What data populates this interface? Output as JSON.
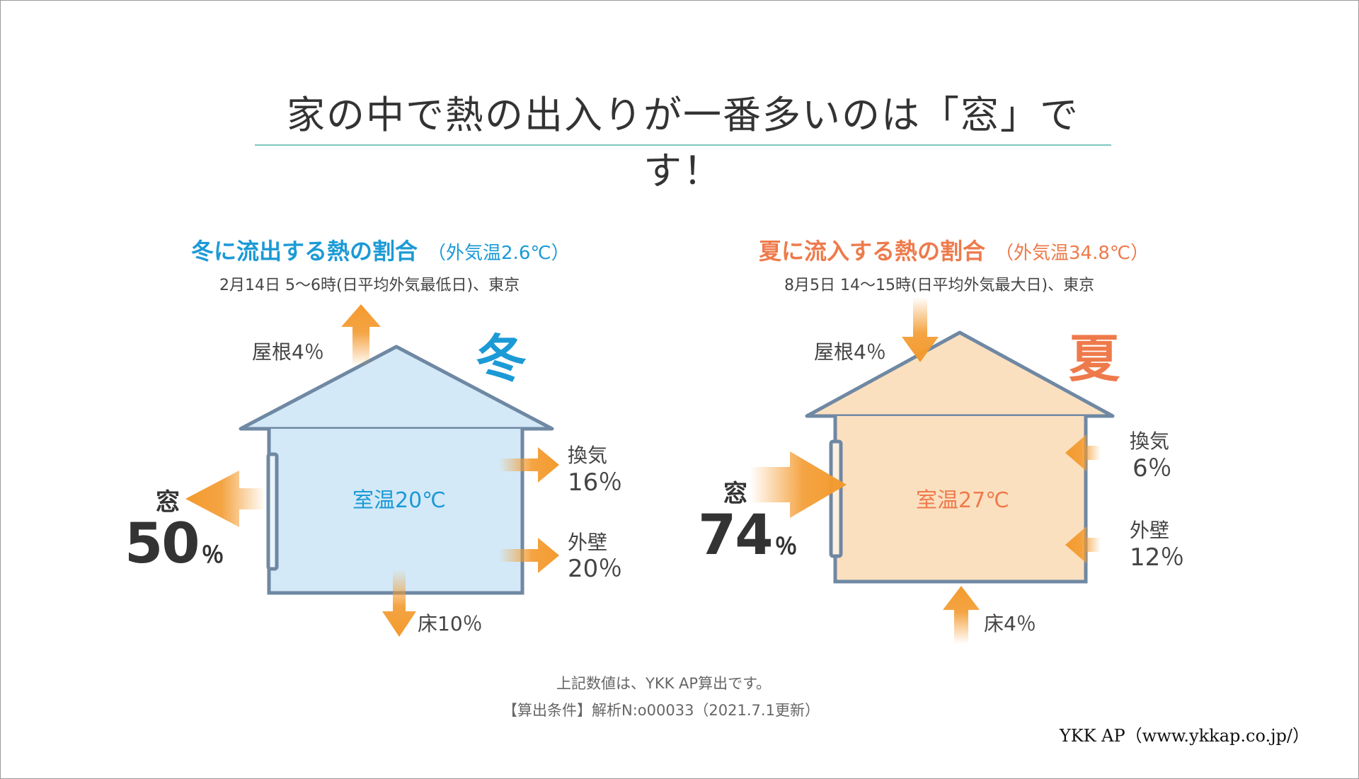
{
  "title": "家の中で熱の出入りが一番多いのは「窓」です！",
  "winter": {
    "heading": "冬に流出する熱の割合",
    "condition": "（外気温2.6℃）",
    "subtitle": "2月14日 5〜6時(日平均外気最低日)、東京",
    "season_label": "冬",
    "room_temp": "室温20℃",
    "roof": {
      "name": "屋根",
      "value": "4％"
    },
    "ventilation": {
      "name": "換気",
      "value": "16％"
    },
    "wall": {
      "name": "外壁",
      "value": "20％"
    },
    "floor": {
      "name": "床",
      "value": "10％"
    },
    "window": {
      "name": "窓",
      "value": "50",
      "unit": "％"
    }
  },
  "summer": {
    "heading": "夏に流入する熱の割合",
    "condition": "（外気温34.8℃）",
    "subtitle": "8月5日 14〜15時(日平均外気最大日)、東京",
    "season_label": "夏",
    "room_temp": "室温27℃",
    "roof": {
      "name": "屋根",
      "value": "4％"
    },
    "ventilation": {
      "name": "換気",
      "value": "6％"
    },
    "wall": {
      "name": "外壁",
      "value": "12％"
    },
    "floor": {
      "name": "床",
      "value": "4％"
    },
    "window": {
      "name": "窓",
      "value": "74",
      "unit": "％"
    }
  },
  "notes": {
    "line1": "上記数値は、YKK AP算出です。",
    "line2": "【算出条件】解析N:o00033（2021.7.1更新）"
  },
  "credit": "YKK AP（www.ykkap.co.jp/）",
  "colors": {
    "winter_accent": "#1b9ad6",
    "summer_accent": "#ee7a4b",
    "winter_fill": "#d3e9f7",
    "summer_fill": "#fbe0c0",
    "outline": "#6f88a3",
    "arrow": "#f39a2e"
  }
}
